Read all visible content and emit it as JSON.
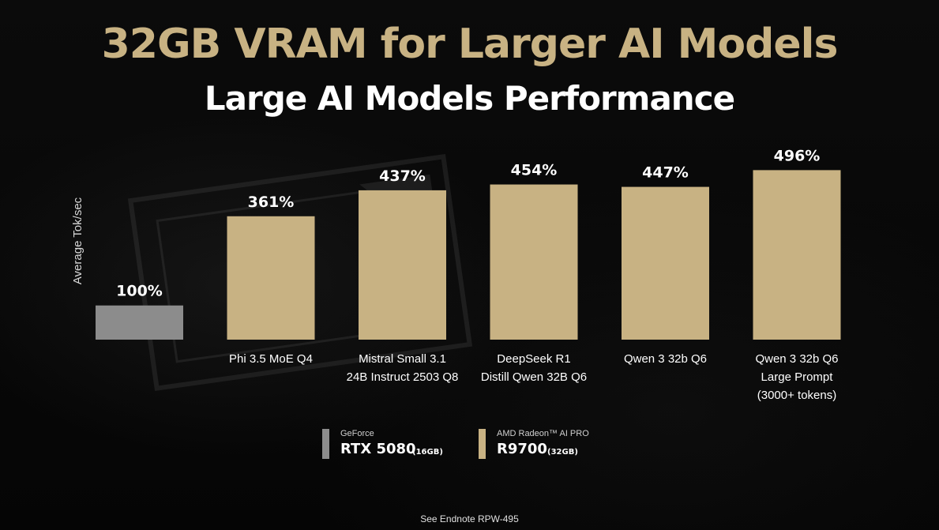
{
  "header": {
    "title": "32GB VRAM for Larger AI Models",
    "subtitle": "Large AI Models Performance"
  },
  "chart_data": {
    "type": "bar",
    "title": "Large AI Models Performance",
    "ylabel": "Average Tok/sec",
    "xlabel": "",
    "ylim": [
      0,
      520
    ],
    "unit": "%",
    "categories": [
      [
        ""
      ],
      [
        "Phi 3.5 MoE Q4"
      ],
      [
        "Mistral Small 3.1",
        "24B Instruct 2503 Q8"
      ],
      [
        "DeepSeek R1",
        "Distill Qwen 32B Q6"
      ],
      [
        "Qwen 3 32b Q6"
      ],
      [
        "Qwen 3 32b Q6",
        "Large Prompt",
        "(3000+ tokens)"
      ]
    ],
    "values": [
      100,
      361,
      437,
      454,
      447,
      496
    ],
    "value_labels": [
      "100%",
      "361%",
      "437%",
      "454%",
      "447%",
      "496%"
    ],
    "bar_colors": [
      "#8c8c8c",
      "#c8b283",
      "#c8b283",
      "#c8b283",
      "#c8b283",
      "#c8b283"
    ],
    "legend_placement": "bottom-center",
    "grid": false
  },
  "legend": {
    "items": [
      {
        "brand": "GeForce",
        "model": "RTX 5080",
        "capacity": "(16GB)",
        "color": "#8c8c8c"
      },
      {
        "brand": "AMD Radeon™ AI PRO",
        "model": "R9700",
        "capacity": "(32GB)",
        "color": "#c8b283"
      }
    ]
  },
  "footnote": "See Endnote  RPW-495"
}
